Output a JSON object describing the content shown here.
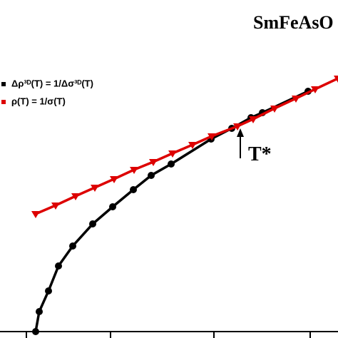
{
  "chart_data": {
    "type": "line",
    "title": "SmFeAsO",
    "annotation": "T*",
    "xlim": [
      0,
      474
    ],
    "ylim": [
      0,
      474
    ],
    "xticks": [
      37,
      155,
      300,
      435
    ],
    "series": [
      {
        "name": "Δρ³ᴰ(T) = 1/Δσ³ᴰ(T)",
        "color": "#000000",
        "marker": "circle",
        "x": [
          50,
          55,
          68,
          82,
          102,
          130,
          158,
          187,
          212,
          240,
          296,
          325,
          352,
          368,
          432
        ],
        "values": [
          9,
          37,
          66,
          101,
          129,
          160,
          184,
          208,
          228,
          244,
          279,
          294,
          309,
          316,
          346
        ]
      },
      {
        "name": "ρ(T) = 1/σ(T)",
        "color": "#dd0000",
        "marker": "triangle",
        "x": [
          50,
          78,
          106,
          133,
          160,
          188,
          215,
          242,
          270,
          297,
          333,
          355,
          385,
          415,
          442,
          474
        ],
        "values": [
          174,
          186,
          199,
          211,
          223,
          236,
          247,
          259,
          271,
          283,
          297,
          307,
          322,
          336,
          349,
          364
        ]
      }
    ]
  }
}
